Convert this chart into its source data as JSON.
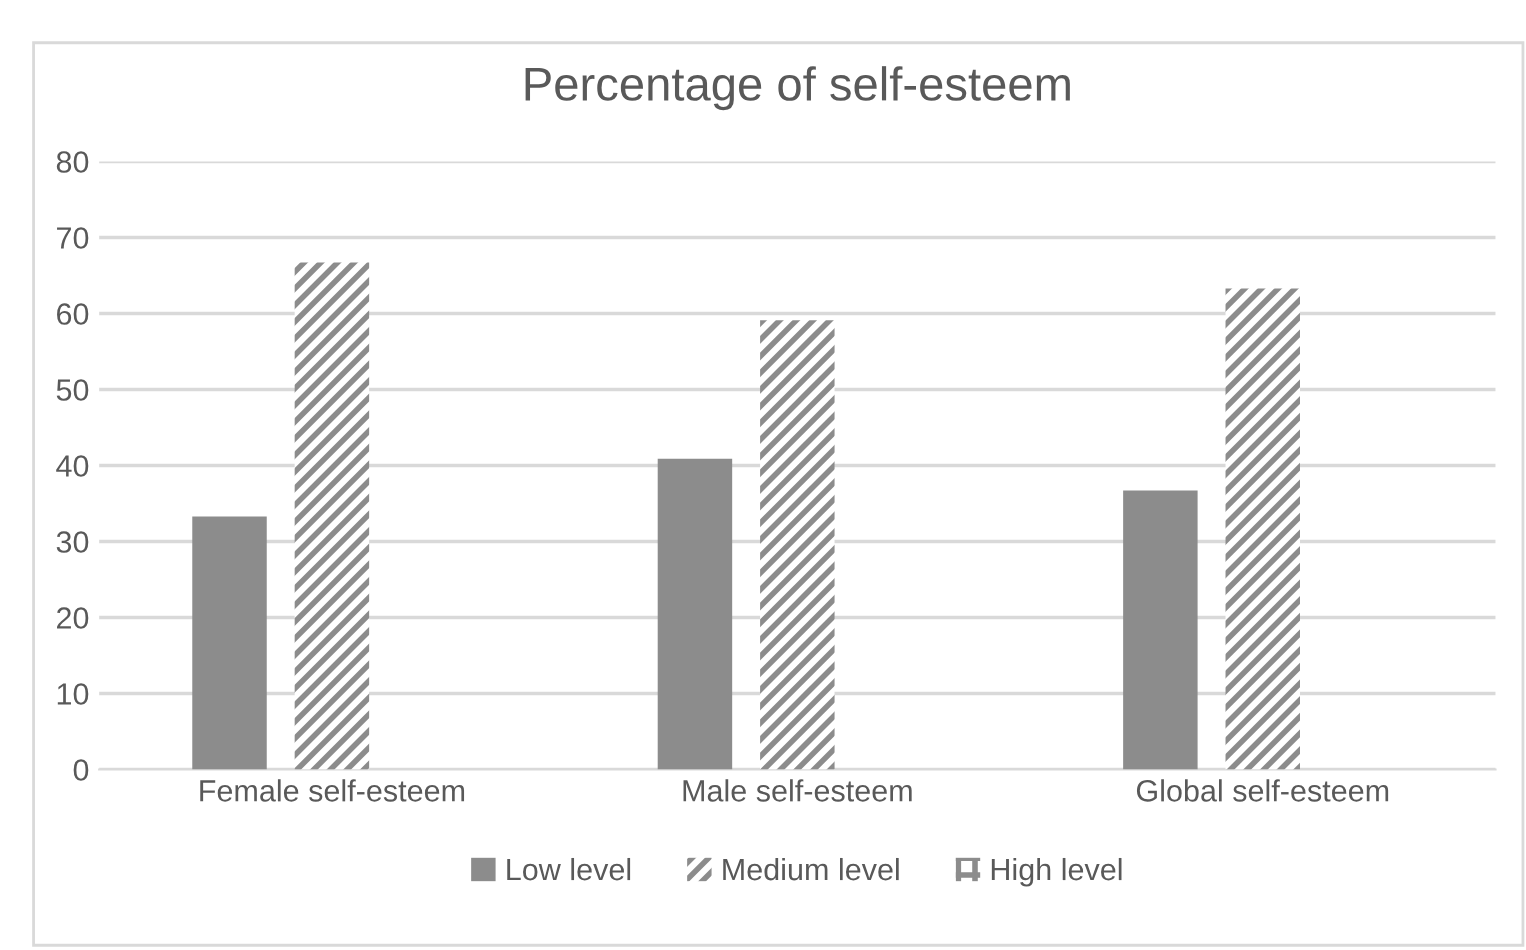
{
  "chart_data": {
    "type": "bar",
    "title": "Percentage of self-esteem",
    "categories": [
      "Female self-esteem",
      "Male self-esteem",
      "Global self-esteem"
    ],
    "series": [
      {
        "name": "Low level",
        "color": "#8c8c8c",
        "values": [
          33.3,
          40.9,
          36.7
        ]
      },
      {
        "name": "Medium level",
        "color": "#8c8c8c",
        "values": [
          66.7,
          59.1,
          63.3
        ]
      },
      {
        "name": "High level",
        "color": "#8c8c8c",
        "values": [
          null,
          null,
          null
        ]
      }
    ],
    "ylim": [
      0,
      80
    ],
    "yticks": [
      0,
      10,
      20,
      30,
      40,
      50,
      60,
      70,
      80
    ],
    "grid": "y",
    "legend": "bottom"
  }
}
